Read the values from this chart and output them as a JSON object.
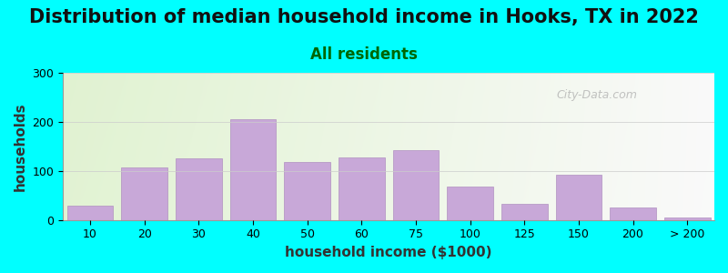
{
  "title": "Distribution of median household income in Hooks, TX in 2022",
  "subtitle": "All residents",
  "xlabel": "household income ($1000)",
  "ylabel": "households",
  "bar_labels": [
    "10",
    "20",
    "30",
    "40",
    "50",
    "60",
    "75",
    "100",
    "125",
    "150",
    "200",
    "> 200"
  ],
  "bar_heights": [
    30,
    108,
    125,
    205,
    118,
    128,
    143,
    68,
    32,
    92,
    25,
    5
  ],
  "bar_color": "#C8A8D8",
  "bar_edgecolor": "#B090C0",
  "bg_color": "#00FFFF",
  "ylim": [
    0,
    300
  ],
  "yticks": [
    0,
    100,
    200,
    300
  ],
  "watermark": "City-Data.com",
  "title_fontsize": 15,
  "subtitle_fontsize": 12,
  "subtitle_color": "#006600",
  "axis_label_fontsize": 11
}
